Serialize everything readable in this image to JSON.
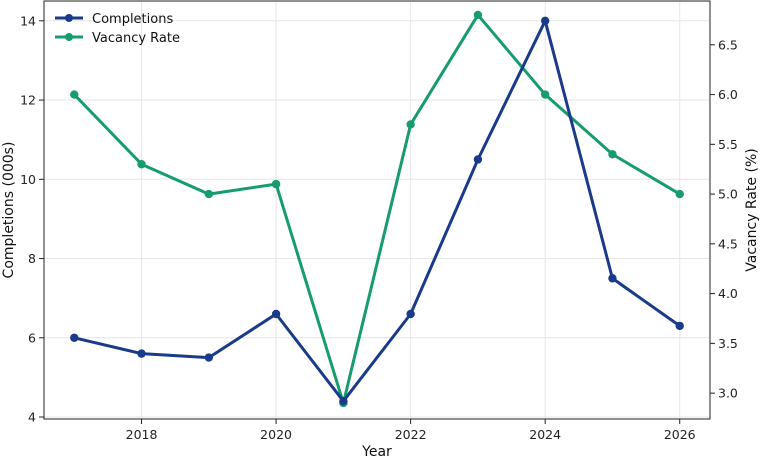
{
  "chart_data": {
    "type": "line",
    "title": "",
    "xlabel": "Year",
    "ylabel_left": "Completions (000s)",
    "ylabel_right": "Vacancy Rate (%)",
    "x": [
      2017,
      2018,
      2019,
      2020,
      2021,
      2022,
      2023,
      2024,
      2025,
      2026
    ],
    "xlim": [
      2016.55,
      2026.45
    ],
    "x_ticks": [
      2018,
      2020,
      2022,
      2024,
      2026
    ],
    "ylim_left": [
      3.95,
      14.5
    ],
    "y_ticks_left": [
      4,
      6,
      8,
      10,
      12,
      14
    ],
    "ylim_right": [
      2.74,
      6.94
    ],
    "y_ticks_right": [
      3.0,
      3.5,
      4.0,
      4.5,
      5.0,
      5.5,
      6.0,
      6.5
    ],
    "grid": true,
    "legend_position": "top-left",
    "series": [
      {
        "name": "Completions",
        "axis": "left",
        "color": "#1a3a8a",
        "values": [
          6.0,
          5.6,
          5.5,
          6.6,
          4.4,
          6.6,
          10.5,
          14.0,
          7.5,
          6.3
        ]
      },
      {
        "name": "Vacancy Rate",
        "axis": "right",
        "color": "#179c6e",
        "values": [
          6.0,
          5.3,
          5.0,
          5.1,
          2.9,
          5.7,
          6.8,
          6.0,
          5.4,
          5.0
        ]
      }
    ]
  }
}
